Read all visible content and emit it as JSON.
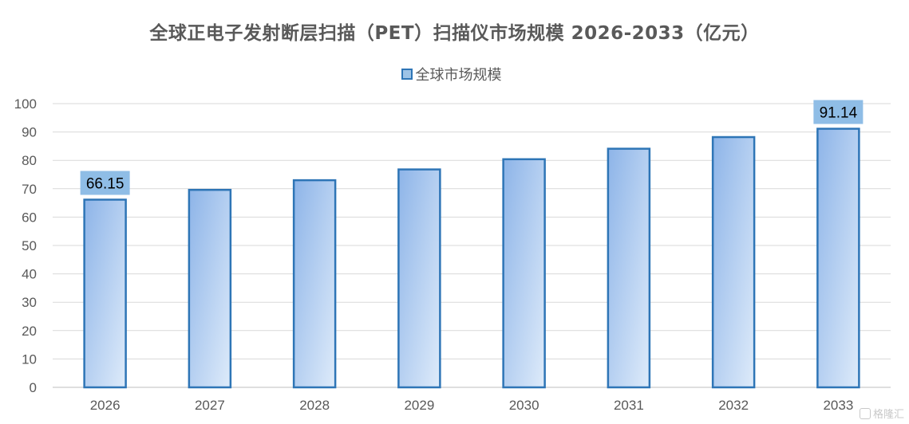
{
  "chart_data": {
    "type": "bar",
    "title": "全球正电子发射断层扫描（PET）扫描仪市场规模 2026-2033（亿元）",
    "legend_position": "top-center",
    "grid": true,
    "categories": [
      "2026",
      "2027",
      "2028",
      "2029",
      "2030",
      "2031",
      "2032",
      "2033"
    ],
    "series": [
      {
        "name": "全球市场规模",
        "values": [
          66.15,
          69.6,
          73.0,
          76.8,
          80.4,
          84.1,
          88.2,
          91.14
        ]
      }
    ],
    "data_labels": [
      {
        "index": 0,
        "text": "66.15"
      },
      {
        "index": 7,
        "text": "91.14"
      }
    ],
    "ylim": [
      0,
      100
    ],
    "yticks": [
      "0",
      "10",
      "20",
      "30",
      "40",
      "50",
      "60",
      "70",
      "80",
      "90",
      "100"
    ],
    "colors": {
      "bar_fill_start": "#8db4e8",
      "bar_fill_end": "#deebfa",
      "bar_border": "#2e75b6",
      "label_box": "#8fbde6",
      "grid": "#d9d9d9",
      "axis": "#bfbfbf",
      "text": "#595959"
    }
  },
  "watermark": {
    "text": "格隆汇",
    "icon": "logo-mark"
  }
}
